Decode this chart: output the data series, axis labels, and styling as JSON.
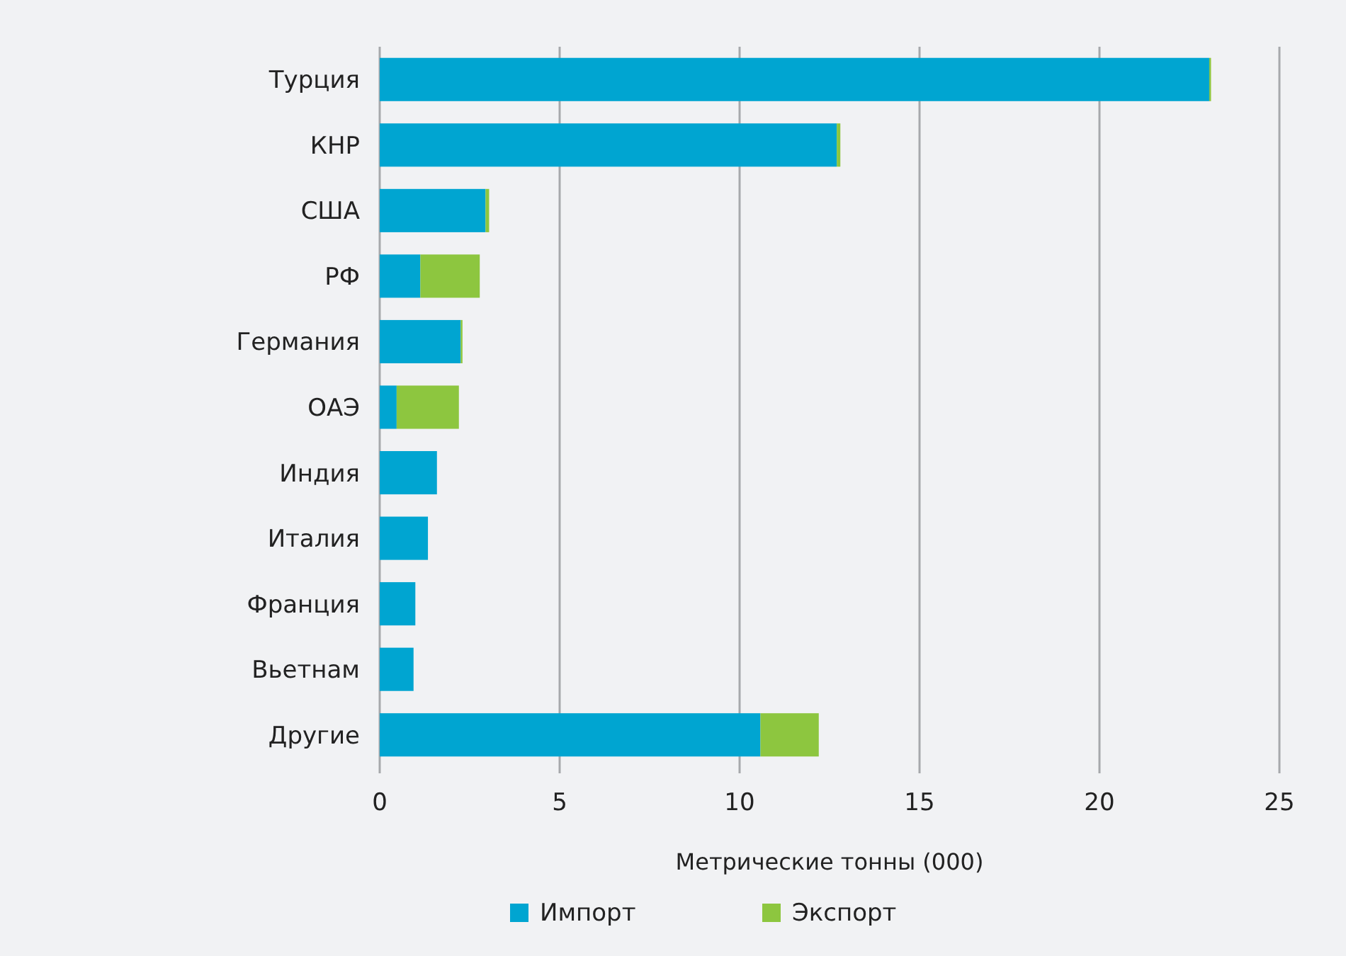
{
  "chart_data": {
    "type": "bar",
    "orientation": "horizontal",
    "stacked": true,
    "xlabel": "Метрические тонны (000)",
    "categories": [
      "Турция",
      "КНР",
      "США",
      "РФ",
      "Германия",
      "ОАЭ",
      "Индия",
      "Италия",
      "Франция",
      "Вьетнам",
      "Другие"
    ],
    "series": [
      {
        "name": "Импорт",
        "color": "#00a5d1",
        "values": [
          23.05,
          12.7,
          2.94,
          1.13,
          2.25,
          0.47,
          1.59,
          1.34,
          0.99,
          0.94,
          10.58
        ]
      },
      {
        "name": "Экспорт",
        "color": "#8dc63f",
        "values": [
          0.05,
          0.1,
          0.1,
          1.65,
          0.05,
          1.73,
          0,
          0,
          0,
          0,
          1.62
        ]
      }
    ],
    "xlim": [
      0,
      25
    ],
    "xticks": [
      0,
      5,
      10,
      15,
      20,
      25
    ],
    "grid": "x",
    "legend": "bottom"
  }
}
